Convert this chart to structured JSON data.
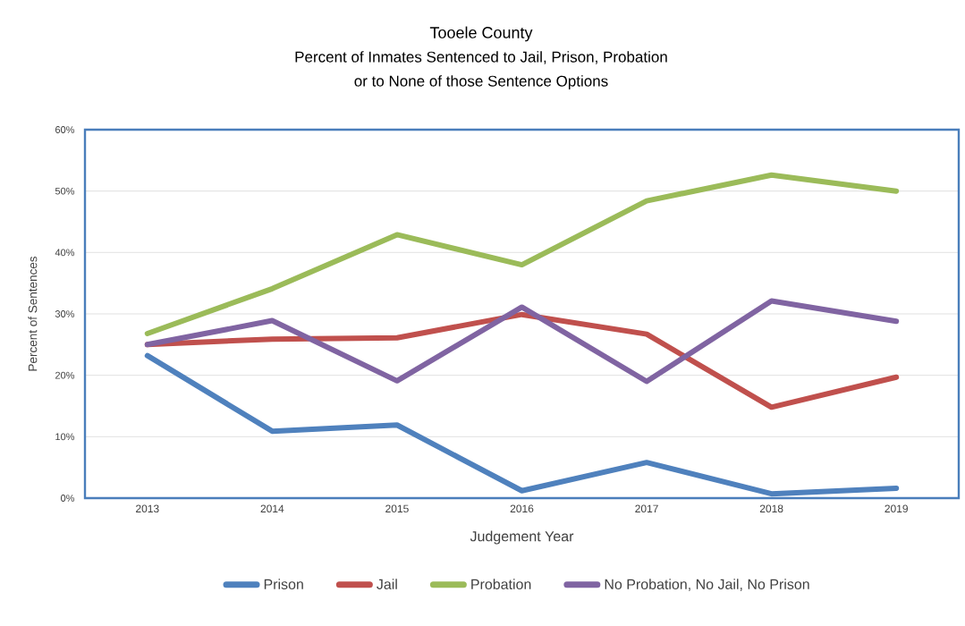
{
  "chart_data": {
    "type": "line",
    "title": "Tooele County",
    "subtitle": "Percent of Inmates Sentenced to Jail, Prison, Probation or to None of those Sentence Options",
    "xlabel": "Judgement Year",
    "ylabel": "Percent of Sentences",
    "categories": [
      "2013",
      "2014",
      "2015",
      "2016",
      "2017",
      "2018",
      "2019"
    ],
    "series": [
      {
        "name": "Prison",
        "color": "#4f81bd",
        "values": [
          23.2,
          10.9,
          11.9,
          1.2,
          5.8,
          0.7,
          1.6
        ]
      },
      {
        "name": "Jail",
        "color": "#c0504d",
        "values": [
          25.0,
          25.9,
          26.1,
          29.9,
          26.7,
          14.8,
          19.7
        ]
      },
      {
        "name": "Probation",
        "color": "#9bbb59",
        "values": [
          26.8,
          34.1,
          42.9,
          38.0,
          48.4,
          52.6,
          50.0
        ]
      },
      {
        "name": "No Probation, No Jail, No Prison",
        "color": "#8064a2",
        "values": [
          25.0,
          28.9,
          19.1,
          31.1,
          19.0,
          32.1,
          28.8
        ]
      }
    ],
    "ylim": [
      0,
      60
    ],
    "yticks": [
      {
        "value": 0,
        "label": "0%"
      },
      {
        "value": 10,
        "label": "10%"
      },
      {
        "value": 20,
        "label": "20%"
      },
      {
        "value": 30,
        "label": "30%"
      },
      {
        "value": 40,
        "label": "40%"
      },
      {
        "value": 50,
        "label": "50%"
      },
      {
        "value": 60,
        "label": "60%"
      }
    ],
    "grid": "y",
    "legend": "bottom"
  }
}
